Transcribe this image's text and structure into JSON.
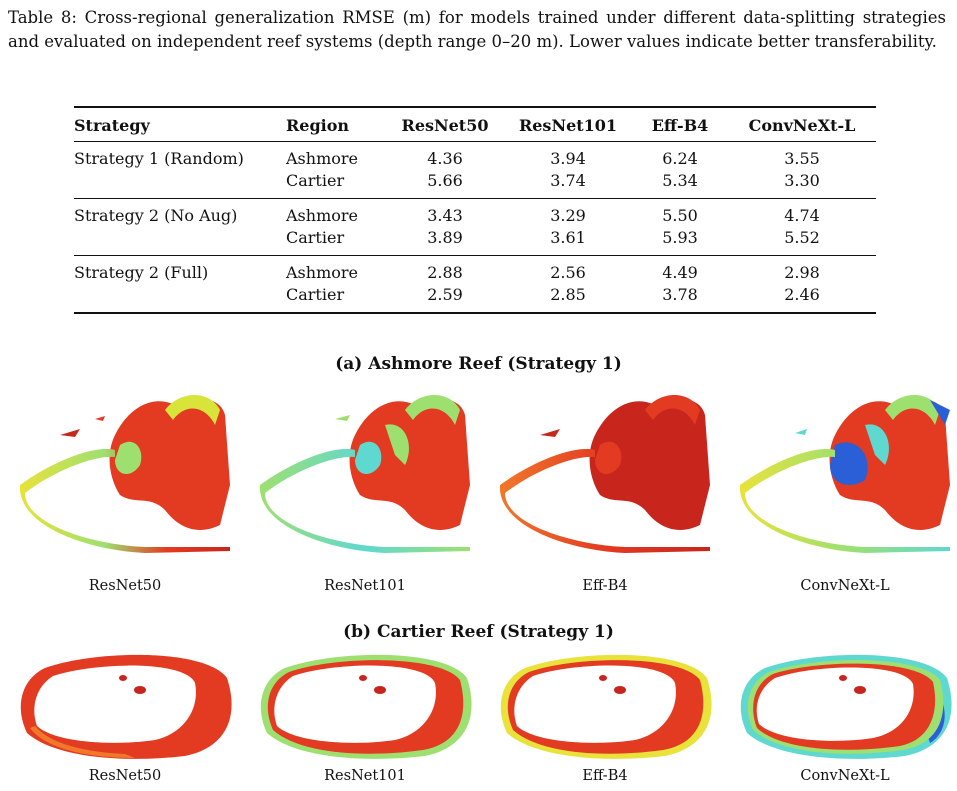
{
  "caption": "Table 8: Cross-regional generalization RMSE (m) for models trained under different data-splitting strategies and evaluated on independent reef systems (depth range 0–20 m). Lower values indicate better transferability.",
  "table": {
    "headers": [
      "Strategy",
      "Region",
      "ResNet50",
      "ResNet101",
      "Eff-B4",
      "ConvNeXt-L"
    ],
    "groups": [
      {
        "strategy": "Strategy 1 (Random)",
        "rows": [
          {
            "region": "Ashmore",
            "values": [
              "4.36",
              "3.94",
              "6.24",
              "3.55"
            ]
          },
          {
            "region": "Cartier",
            "values": [
              "5.66",
              "3.74",
              "5.34",
              "3.30"
            ]
          }
        ]
      },
      {
        "strategy": "Strategy 2 (No Aug)",
        "rows": [
          {
            "region": "Ashmore",
            "values": [
              "3.43",
              "3.29",
              "5.50",
              "4.74"
            ]
          },
          {
            "region": "Cartier",
            "values": [
              "3.89",
              "3.61",
              "5.93",
              "5.52"
            ]
          }
        ]
      },
      {
        "strategy": "Strategy 2 (Full)",
        "rows": [
          {
            "region": "Ashmore",
            "values": [
              "2.88",
              "2.56",
              "4.49",
              "2.98"
            ]
          },
          {
            "region": "Cartier",
            "values": [
              "2.59",
              "2.85",
              "3.78",
              "2.46"
            ]
          }
        ]
      }
    ]
  },
  "figure_a": {
    "title": "(a) Ashmore Reef (Strategy 1)",
    "panels": [
      "ResNet50",
      "ResNet101",
      "Eff-B4",
      "ConvNeXt-L"
    ]
  },
  "figure_b": {
    "title": "(b) Cartier Reef (Strategy 1)",
    "panels": [
      "ResNet50",
      "ResNet101",
      "Eff-B4",
      "ConvNeXt-L"
    ]
  },
  "colors": {
    "deep_red": "#c8261c",
    "red": "#e33a22",
    "orange": "#f0782a",
    "yellow": "#e8e23a",
    "green": "#9ee070",
    "cyan": "#5fd8d0",
    "blue": "#2b5fd8"
  }
}
